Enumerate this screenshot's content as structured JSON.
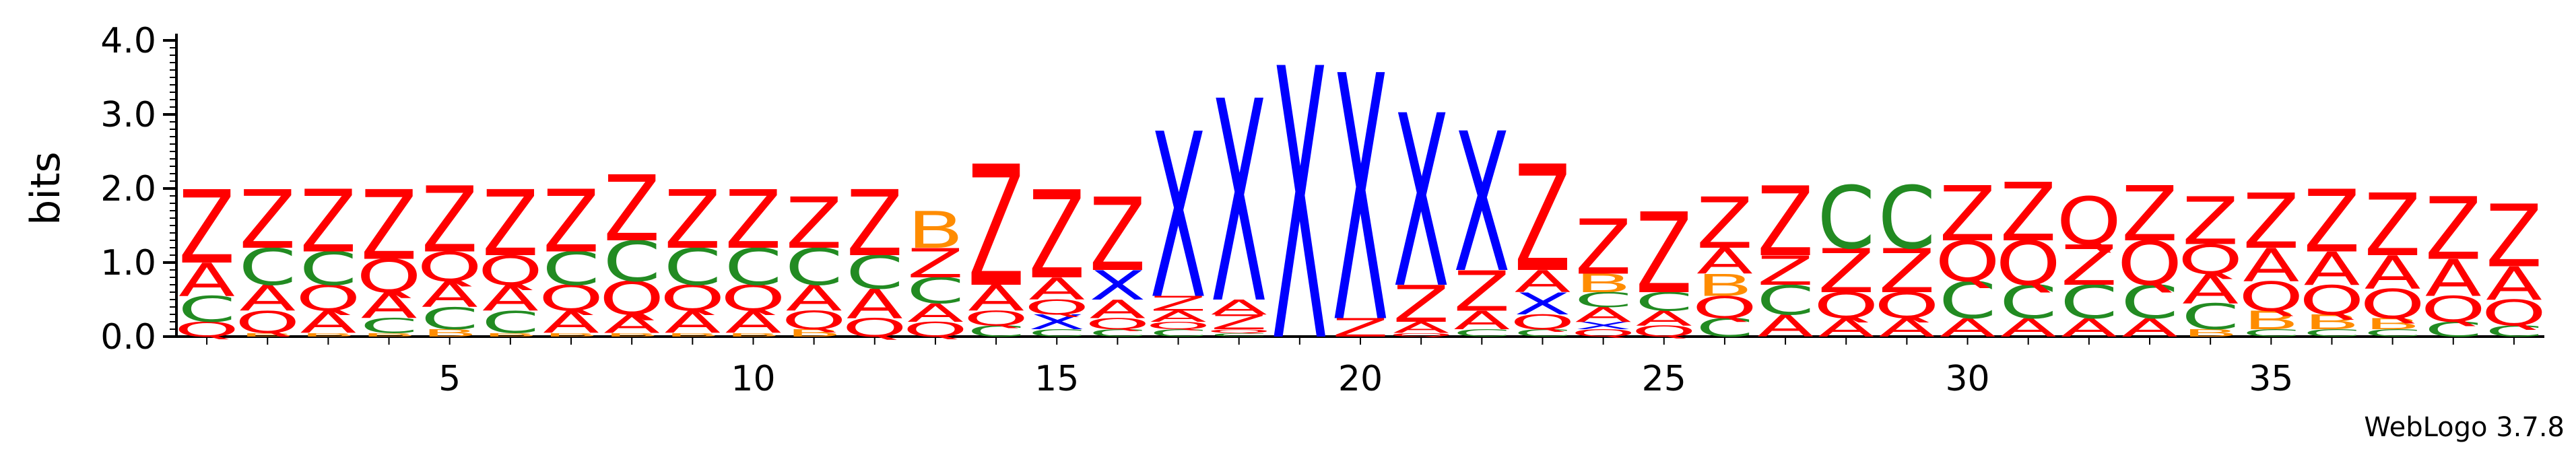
{
  "chart_data": {
    "type": "sequence-logo",
    "ylabel": "bits",
    "ylim": [
      0,
      4.0
    ],
    "yticks": [
      "0.0",
      "1.0",
      "2.0",
      "3.0",
      "4.0"
    ],
    "xticks": [
      "5",
      "10",
      "15",
      "20",
      "25",
      "30",
      "35"
    ],
    "credit": "WebLogo 3.7.8",
    "colors": {
      "Z": "#ff0000",
      "A": "#ff0000",
      "Q": "#ff0000",
      "X": "#0000ff",
      "C": "#228b22",
      "B": "#ff8c00"
    },
    "positions": [
      {
        "pos": 1,
        "stack": [
          [
            "Q",
            0.2
          ],
          [
            "C",
            0.35
          ],
          [
            "A",
            0.45
          ],
          [
            "Z",
            1.0
          ]
        ]
      },
      {
        "pos": 2,
        "stack": [
          [
            "B",
            0.05
          ],
          [
            "Q",
            0.3
          ],
          [
            "A",
            0.35
          ],
          [
            "C",
            0.5
          ],
          [
            "Z",
            0.8
          ]
        ]
      },
      {
        "pos": 3,
        "stack": [
          [
            "B",
            0.05
          ],
          [
            "A",
            0.3
          ],
          [
            "Q",
            0.35
          ],
          [
            "C",
            0.45
          ],
          [
            "Z",
            0.85
          ]
        ]
      },
      {
        "pos": 4,
        "stack": [
          [
            "B",
            0.05
          ],
          [
            "C",
            0.2
          ],
          [
            "A",
            0.35
          ],
          [
            "Q",
            0.45
          ],
          [
            "Z",
            0.95
          ]
        ]
      },
      {
        "pos": 5,
        "stack": [
          [
            "B",
            0.1
          ],
          [
            "C",
            0.3
          ],
          [
            "A",
            0.35
          ],
          [
            "Q",
            0.4
          ],
          [
            "Z",
            0.9
          ]
        ]
      },
      {
        "pos": 6,
        "stack": [
          [
            "B",
            0.05
          ],
          [
            "C",
            0.3
          ],
          [
            "A",
            0.35
          ],
          [
            "Q",
            0.4
          ],
          [
            "Z",
            0.9
          ]
        ]
      },
      {
        "pos": 7,
        "stack": [
          [
            "B",
            0.05
          ],
          [
            "A",
            0.3
          ],
          [
            "Q",
            0.35
          ],
          [
            "C",
            0.45
          ],
          [
            "Z",
            0.85
          ]
        ]
      },
      {
        "pos": 8,
        "stack": [
          [
            "B",
            0.05
          ],
          [
            "A",
            0.25
          ],
          [
            "Q",
            0.45
          ],
          [
            "C",
            0.55
          ],
          [
            "Z",
            0.9
          ]
        ]
      },
      {
        "pos": 9,
        "stack": [
          [
            "B",
            0.05
          ],
          [
            "A",
            0.3
          ],
          [
            "Q",
            0.35
          ],
          [
            "C",
            0.5
          ],
          [
            "Z",
            0.8
          ]
        ]
      },
      {
        "pos": 10,
        "stack": [
          [
            "B",
            0.05
          ],
          [
            "A",
            0.3
          ],
          [
            "Q",
            0.35
          ],
          [
            "C",
            0.5
          ],
          [
            "Z",
            0.8
          ]
        ]
      },
      {
        "pos": 11,
        "stack": [
          [
            "B",
            0.1
          ],
          [
            "Q",
            0.25
          ],
          [
            "A",
            0.35
          ],
          [
            "C",
            0.5
          ],
          [
            "Z",
            0.7
          ]
        ]
      },
      {
        "pos": 12,
        "stack": [
          [
            "Q",
            0.25
          ],
          [
            "A",
            0.4
          ],
          [
            "C",
            0.45
          ],
          [
            "Z",
            0.9
          ]
        ]
      },
      {
        "pos": 13,
        "stack": [
          [
            "Q",
            0.2
          ],
          [
            "A",
            0.25
          ],
          [
            "C",
            0.35
          ],
          [
            "Z",
            0.4
          ],
          [
            "B",
            0.5
          ]
        ]
      },
      {
        "pos": 14,
        "stack": [
          [
            "C",
            0.15
          ],
          [
            "Q",
            0.2
          ],
          [
            "A",
            0.35
          ],
          [
            "Z",
            1.65
          ]
        ]
      },
      {
        "pos": 15,
        "stack": [
          [
            "C",
            0.1
          ],
          [
            "X",
            0.2
          ],
          [
            "Q",
            0.2
          ],
          [
            "A",
            0.3
          ],
          [
            "Z",
            1.2
          ]
        ]
      },
      {
        "pos": 16,
        "stack": [
          [
            "C",
            0.1
          ],
          [
            "Q",
            0.15
          ],
          [
            "A",
            0.25
          ],
          [
            "X",
            0.4
          ],
          [
            "Z",
            1.0
          ]
        ]
      },
      {
        "pos": 17,
        "stack": [
          [
            "C",
            0.1
          ],
          [
            "Q",
            0.1
          ],
          [
            "A",
            0.15
          ],
          [
            "Z",
            0.2
          ],
          [
            "X",
            2.25
          ]
        ]
      },
      {
        "pos": 18,
        "stack": [
          [
            "C",
            0.05
          ],
          [
            "Q",
            0.05
          ],
          [
            "Z",
            0.2
          ],
          [
            "A",
            0.2
          ],
          [
            "X",
            2.75
          ]
        ]
      },
      {
        "pos": 19,
        "stack": [
          [
            "X",
            3.7
          ]
        ]
      },
      {
        "pos": 20,
        "stack": [
          [
            "Z",
            0.25
          ],
          [
            "X",
            3.35
          ]
        ]
      },
      {
        "pos": 21,
        "stack": [
          [
            "Q",
            0.05
          ],
          [
            "A",
            0.15
          ],
          [
            "Z",
            0.5
          ],
          [
            "X",
            2.35
          ]
        ]
      },
      {
        "pos": 22,
        "stack": [
          [
            "C",
            0.1
          ],
          [
            "A",
            0.25
          ],
          [
            "Z",
            0.55
          ],
          [
            "X",
            1.9
          ]
        ]
      },
      {
        "pos": 23,
        "stack": [
          [
            "C",
            0.1
          ],
          [
            "Q",
            0.2
          ],
          [
            "X",
            0.3
          ],
          [
            "A",
            0.3
          ],
          [
            "Z",
            1.45
          ]
        ]
      },
      {
        "pos": 24,
        "stack": [
          [
            "Q",
            0.1
          ],
          [
            "X",
            0.1
          ],
          [
            "A",
            0.2
          ],
          [
            "C",
            0.2
          ],
          [
            "B",
            0.25
          ],
          [
            "Z",
            0.75
          ]
        ]
      },
      {
        "pos": 25,
        "stack": [
          [
            "Q",
            0.15
          ],
          [
            "A",
            0.2
          ],
          [
            "C",
            0.25
          ],
          [
            "Z",
            1.1
          ]
        ]
      },
      {
        "pos": 26,
        "stack": [
          [
            "C",
            0.25
          ],
          [
            "Q",
            0.3
          ],
          [
            "B",
            0.3
          ],
          [
            "A",
            0.35
          ],
          [
            "Z",
            0.7
          ]
        ]
      },
      {
        "pos": 27,
        "stack": [
          [
            "A",
            0.3
          ],
          [
            "C",
            0.4
          ],
          [
            "Z",
            0.4
          ],
          [
            "Z",
            0.95
          ]
        ]
      },
      {
        "pos": 28,
        "stack": [
          [
            "A",
            0.25
          ],
          [
            "Q",
            0.35
          ],
          [
            "Z",
            0.6
          ],
          [
            "C",
            0.85
          ]
        ]
      },
      {
        "pos": 29,
        "stack": [
          [
            "A",
            0.25
          ],
          [
            "Q",
            0.35
          ],
          [
            "Z",
            0.6
          ],
          [
            "C",
            0.85
          ]
        ]
      },
      {
        "pos": 30,
        "stack": [
          [
            "A",
            0.25
          ],
          [
            "C",
            0.5
          ],
          [
            "Q",
            0.55
          ],
          [
            "Z",
            0.75
          ]
        ]
      },
      {
        "pos": 31,
        "stack": [
          [
            "A",
            0.25
          ],
          [
            "C",
            0.45
          ],
          [
            "Q",
            0.6
          ],
          [
            "Z",
            0.8
          ]
        ]
      },
      {
        "pos": 32,
        "stack": [
          [
            "A",
            0.25
          ],
          [
            "C",
            0.45
          ],
          [
            "Z",
            0.55
          ],
          [
            "Q",
            0.65
          ]
        ]
      },
      {
        "pos": 33,
        "stack": [
          [
            "A",
            0.25
          ],
          [
            "C",
            0.45
          ],
          [
            "Q",
            0.6
          ],
          [
            "Z",
            0.75
          ]
        ]
      },
      {
        "pos": 34,
        "stack": [
          [
            "B",
            0.1
          ],
          [
            "C",
            0.35
          ],
          [
            "A",
            0.4
          ],
          [
            "Q",
            0.4
          ],
          [
            "Z",
            0.65
          ]
        ]
      },
      {
        "pos": 35,
        "stack": [
          [
            "C",
            0.1
          ],
          [
            "B",
            0.25
          ],
          [
            "Q",
            0.4
          ],
          [
            "A",
            0.45
          ],
          [
            "Z",
            0.75
          ]
        ]
      },
      {
        "pos": 36,
        "stack": [
          [
            "C",
            0.1
          ],
          [
            "B",
            0.2
          ],
          [
            "Q",
            0.4
          ],
          [
            "A",
            0.45
          ],
          [
            "Z",
            0.85
          ]
        ]
      },
      {
        "pos": 37,
        "stack": [
          [
            "C",
            0.1
          ],
          [
            "B",
            0.15
          ],
          [
            "Q",
            0.4
          ],
          [
            "A",
            0.45
          ],
          [
            "Z",
            0.85
          ]
        ]
      },
      {
        "pos": 38,
        "stack": [
          [
            "C",
            0.2
          ],
          [
            "Q",
            0.35
          ],
          [
            "A",
            0.5
          ],
          [
            "Z",
            0.85
          ]
        ]
      },
      {
        "pos": 39,
        "stack": [
          [
            "C",
            0.15
          ],
          [
            "Q",
            0.35
          ],
          [
            "A",
            0.45
          ],
          [
            "Z",
            0.85
          ]
        ]
      }
    ]
  }
}
